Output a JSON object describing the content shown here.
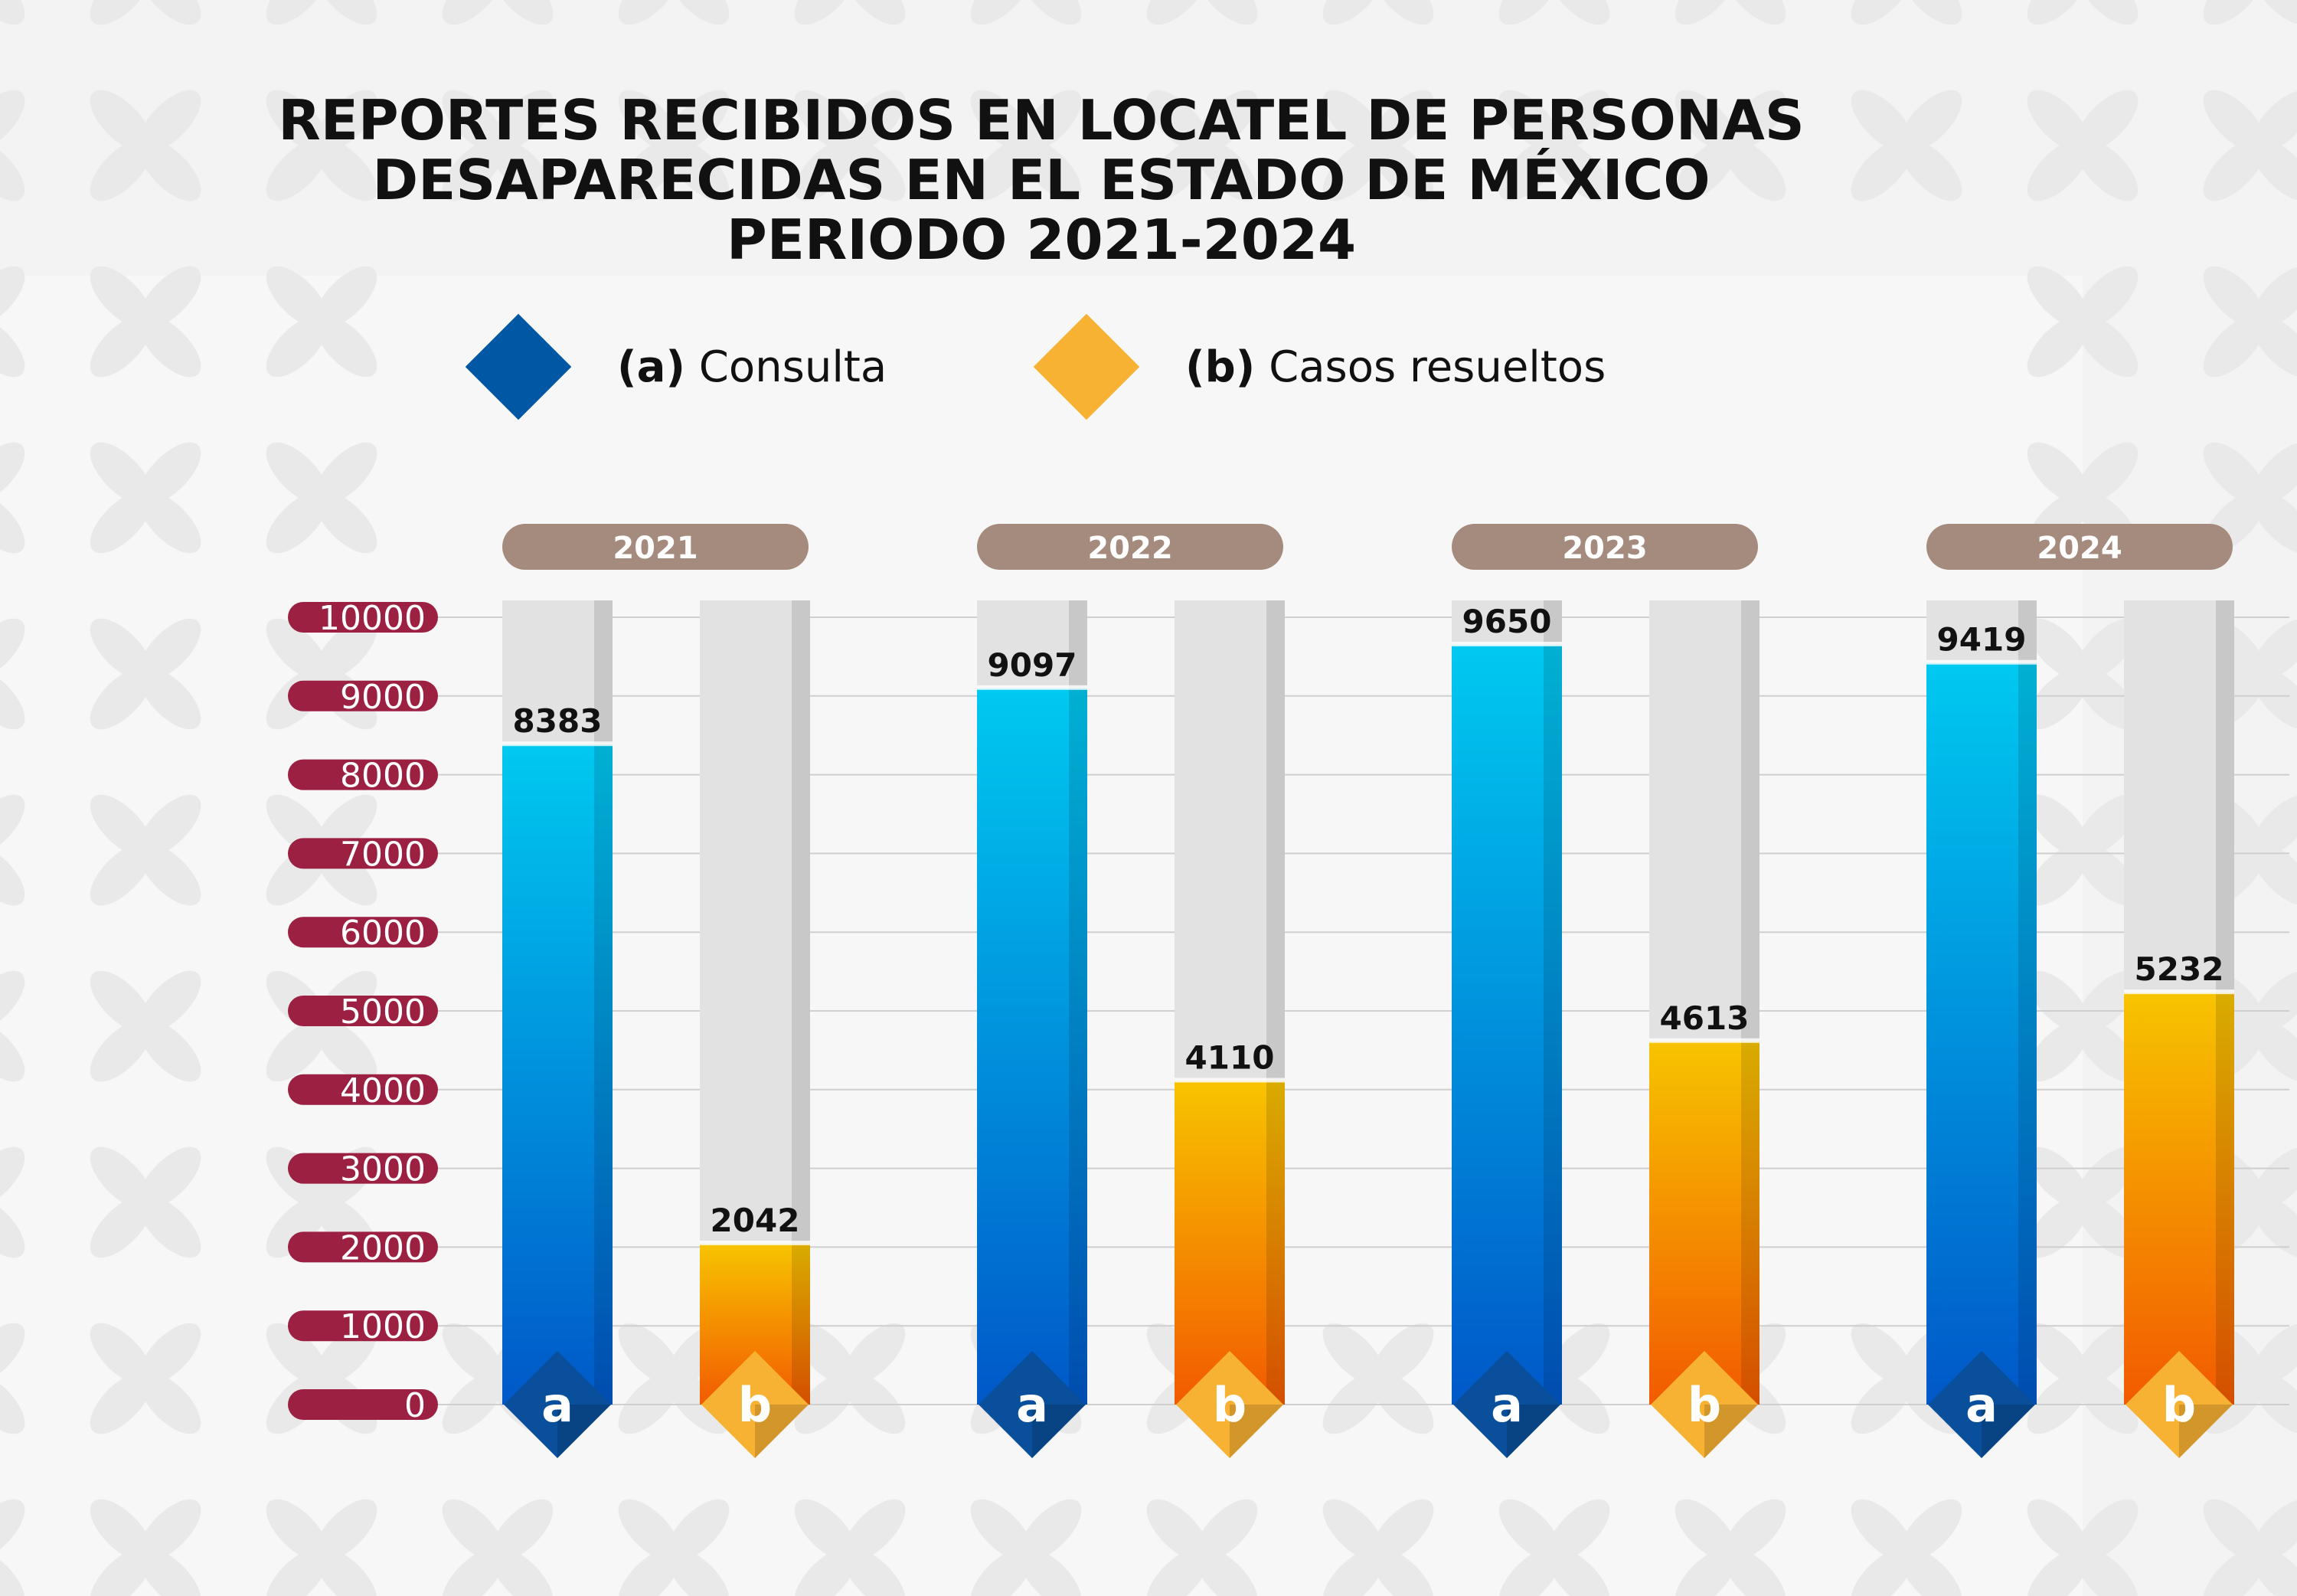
{
  "title_lines": [
    "REPORTES RECIBIDOS EN LOCATEL DE PERSONAS",
    "DESAPARECIDAS EN EL ESTADO DE MÉXICO",
    "PERIODO 2021-2024"
  ],
  "legend": [
    {
      "letter": "(a)",
      "label": "Consulta",
      "color": "#0057A4"
    },
    {
      "letter": "(b)",
      "label": "Casos resueltos",
      "color": "#F7B133"
    }
  ],
  "colors": {
    "axis_badge": "#9B2042",
    "year_pill": "#A58B7D",
    "track": "#E2E2E2",
    "track_shadow": "#C8C8C8",
    "series_a_top": "#00C9F0",
    "series_a_bottom": "#0058C8",
    "series_b_top": "#F7C400",
    "series_b_bottom": "#F25A00",
    "marker_a": "#0A4F9C",
    "marker_b": "#F7B133"
  },
  "chart_data": {
    "type": "bar",
    "title": "REPORTES RECIBIDOS EN LOCATEL DE PERSONAS DESAPARECIDAS EN EL ESTADO DE MÉXICO PERIODO 2021-2024",
    "categories": [
      "2021",
      "2022",
      "2023",
      "2024"
    ],
    "series": [
      {
        "name": "Consulta",
        "marker": "a",
        "values": [
          8383,
          9097,
          9650,
          9419
        ],
        "labels": [
          "8383",
          "9097",
          "9650",
          "9419"
        ]
      },
      {
        "name": "Casos resueltos",
        "marker": "b",
        "values": [
          2042,
          4110,
          4613,
          5232
        ],
        "labels": [
          "2042",
          "4110",
          "4613",
          "5232"
        ]
      }
    ],
    "yticks": [
      "0",
      "1000",
      "2000",
      "3000",
      "4000",
      "5000",
      "6000",
      "7000",
      "8000",
      "9000",
      "10000"
    ],
    "ylim": [
      0,
      10000
    ],
    "grid": true,
    "legend_position": "top"
  }
}
